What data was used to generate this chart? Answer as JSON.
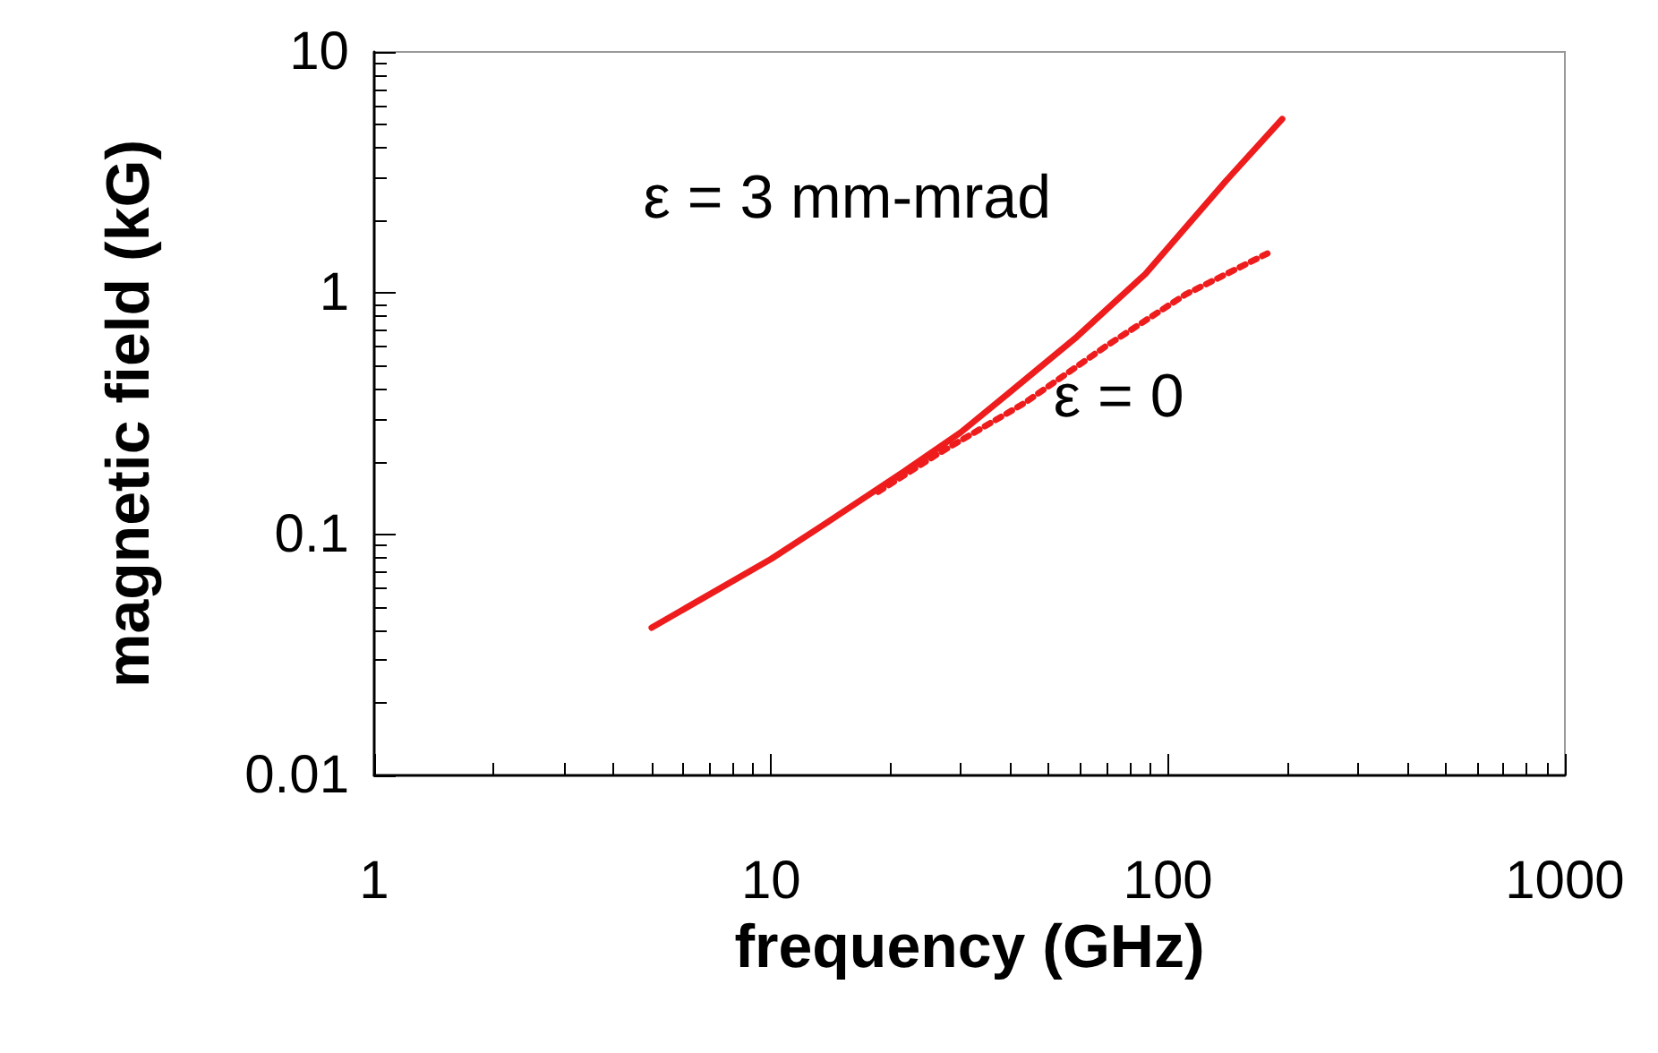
{
  "chart_data": {
    "type": "line",
    "xlabel": "frequency (GHz)",
    "ylabel": "magnetic field (kG)",
    "log": "xy",
    "grid": false,
    "legend": false,
    "marker": "none",
    "xlim": [
      1,
      1000
    ],
    "xticks": [
      1,
      10,
      100,
      1000
    ],
    "ylim": [
      0.01,
      10
    ],
    "yticks": [
      0.01,
      0.1,
      1,
      10
    ],
    "series": [
      {
        "name": "ε = 3 mm-mrad",
        "color": "#ee1c1c",
        "line_style": "solid",
        "x": [
          5,
          10,
          13.5,
          21.6,
          30,
          39.7,
          59,
          87.7,
          140,
          194
        ],
        "values": [
          0.041,
          0.079,
          0.109,
          0.182,
          0.264,
          0.385,
          0.66,
          1.2,
          2.92,
          5.27
        ]
      },
      {
        "name": "ε = 0",
        "color": "#ee1c1c",
        "line_style": "dotted",
        "x": [
          18.6,
          26,
          43.5,
          69.5,
          111,
          178
        ],
        "values": [
          0.15,
          0.213,
          0.35,
          0.6,
          0.99,
          1.46
        ]
      }
    ]
  }
}
